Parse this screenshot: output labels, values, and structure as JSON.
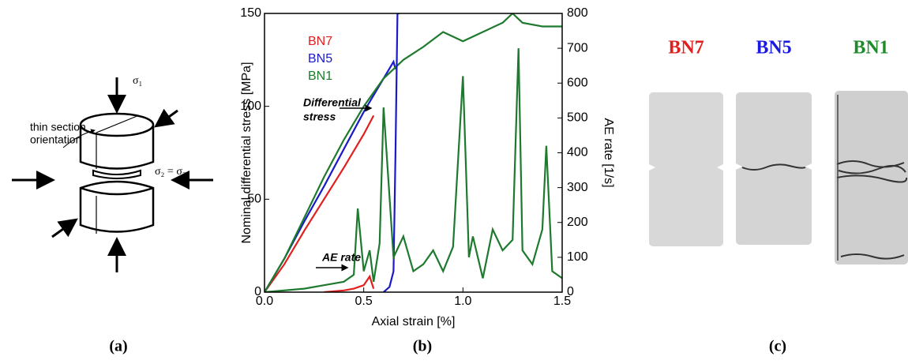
{
  "diagram": {
    "forces": [
      "σ₁",
      "σ₂ = σ₃"
    ],
    "orientation_label": [
      "thin section",
      "orientation"
    ]
  },
  "chart_data": {
    "type": "line",
    "xlabel": "Axial strain [%]",
    "ylabel": "Nominal differential stress [MPa]",
    "y2label": "AE rate [1/s]",
    "xlim": [
      0,
      1.5
    ],
    "xticks": [
      {
        "value": 0,
        "label": "0.0"
      },
      0.5,
      {
        "value": 1,
        "label": "1.0"
      },
      1.5
    ],
    "ylim": [
      0,
      150
    ],
    "yticks": [
      0,
      50,
      100,
      150
    ],
    "y2lim": [
      0,
      800
    ],
    "y2ticks": [
      0,
      100,
      200,
      300,
      400,
      500,
      600,
      700,
      800
    ],
    "legend": "upper left",
    "annotations": [
      {
        "text": [
          "Differential",
          "stress"
        ]
      },
      {
        "text": [
          "AE rate"
        ]
      }
    ],
    "series": [
      {
        "name": "BN7",
        "color": "#e0201f",
        "x": [
          0,
          0.1,
          0.2,
          0.3,
          0.4,
          0.5,
          0.55
        ],
        "values": [
          0,
          15,
          33,
          50,
          67,
          85,
          95
        ]
      },
      {
        "name": "BN5",
        "color": "#1a1ac8",
        "x": [
          0,
          0.1,
          0.2,
          0.3,
          0.4,
          0.5,
          0.6,
          0.65,
          0.66
        ],
        "values": [
          0,
          18,
          38,
          57,
          77,
          97,
          115,
          124,
          120
        ]
      },
      {
        "name": "BN1",
        "color": "#1e7a2e",
        "x": [
          0,
          0.1,
          0.2,
          0.3,
          0.4,
          0.5,
          0.6,
          0.7,
          0.8,
          0.9,
          1.0,
          1.1,
          1.2,
          1.25,
          1.3,
          1.4,
          1.5
        ],
        "values": [
          0,
          18,
          40,
          62,
          82,
          100,
          115,
          125,
          132,
          140,
          135,
          140,
          145,
          150,
          145,
          143,
          143
        ]
      },
      {
        "color": "#e0201f",
        "axis": "y2",
        "x": [
          0.3,
          0.4,
          0.45,
          0.5,
          0.53,
          0.55
        ],
        "values": [
          0,
          5,
          10,
          20,
          45,
          10
        ]
      },
      {
        "color": "#1a1ac8",
        "axis": "y2",
        "x": [
          0.6,
          0.63,
          0.65,
          0.66,
          0.67,
          0.68
        ],
        "values": [
          0,
          15,
          60,
          400,
          800,
          800
        ]
      },
      {
        "color": "#1e7a2e",
        "axis": "y2",
        "x": [
          0,
          0.2,
          0.3,
          0.4,
          0.45,
          0.47,
          0.5,
          0.53,
          0.55,
          0.58,
          0.6,
          0.65,
          0.7,
          0.75,
          0.8,
          0.85,
          0.9,
          0.95,
          1.0,
          1.03,
          1.05,
          1.1,
          1.15,
          1.2,
          1.25,
          1.28,
          1.3,
          1.35,
          1.4,
          1.42,
          1.45,
          1.5
        ],
        "values": [
          0,
          10,
          20,
          30,
          50,
          240,
          60,
          120,
          30,
          140,
          530,
          100,
          160,
          60,
          80,
          120,
          60,
          130,
          620,
          100,
          160,
          40,
          180,
          120,
          150,
          700,
          120,
          80,
          180,
          420,
          60,
          40
        ]
      }
    ]
  },
  "images": {
    "labels": [
      {
        "text": "BN7",
        "color": "#e0201f"
      },
      {
        "text": "BN5",
        "color": "#1a1ae0"
      },
      {
        "text": "BN1",
        "color": "#1e8a2a"
      }
    ]
  },
  "panel_labels": [
    "(a)",
    "(b)",
    "(c)"
  ]
}
